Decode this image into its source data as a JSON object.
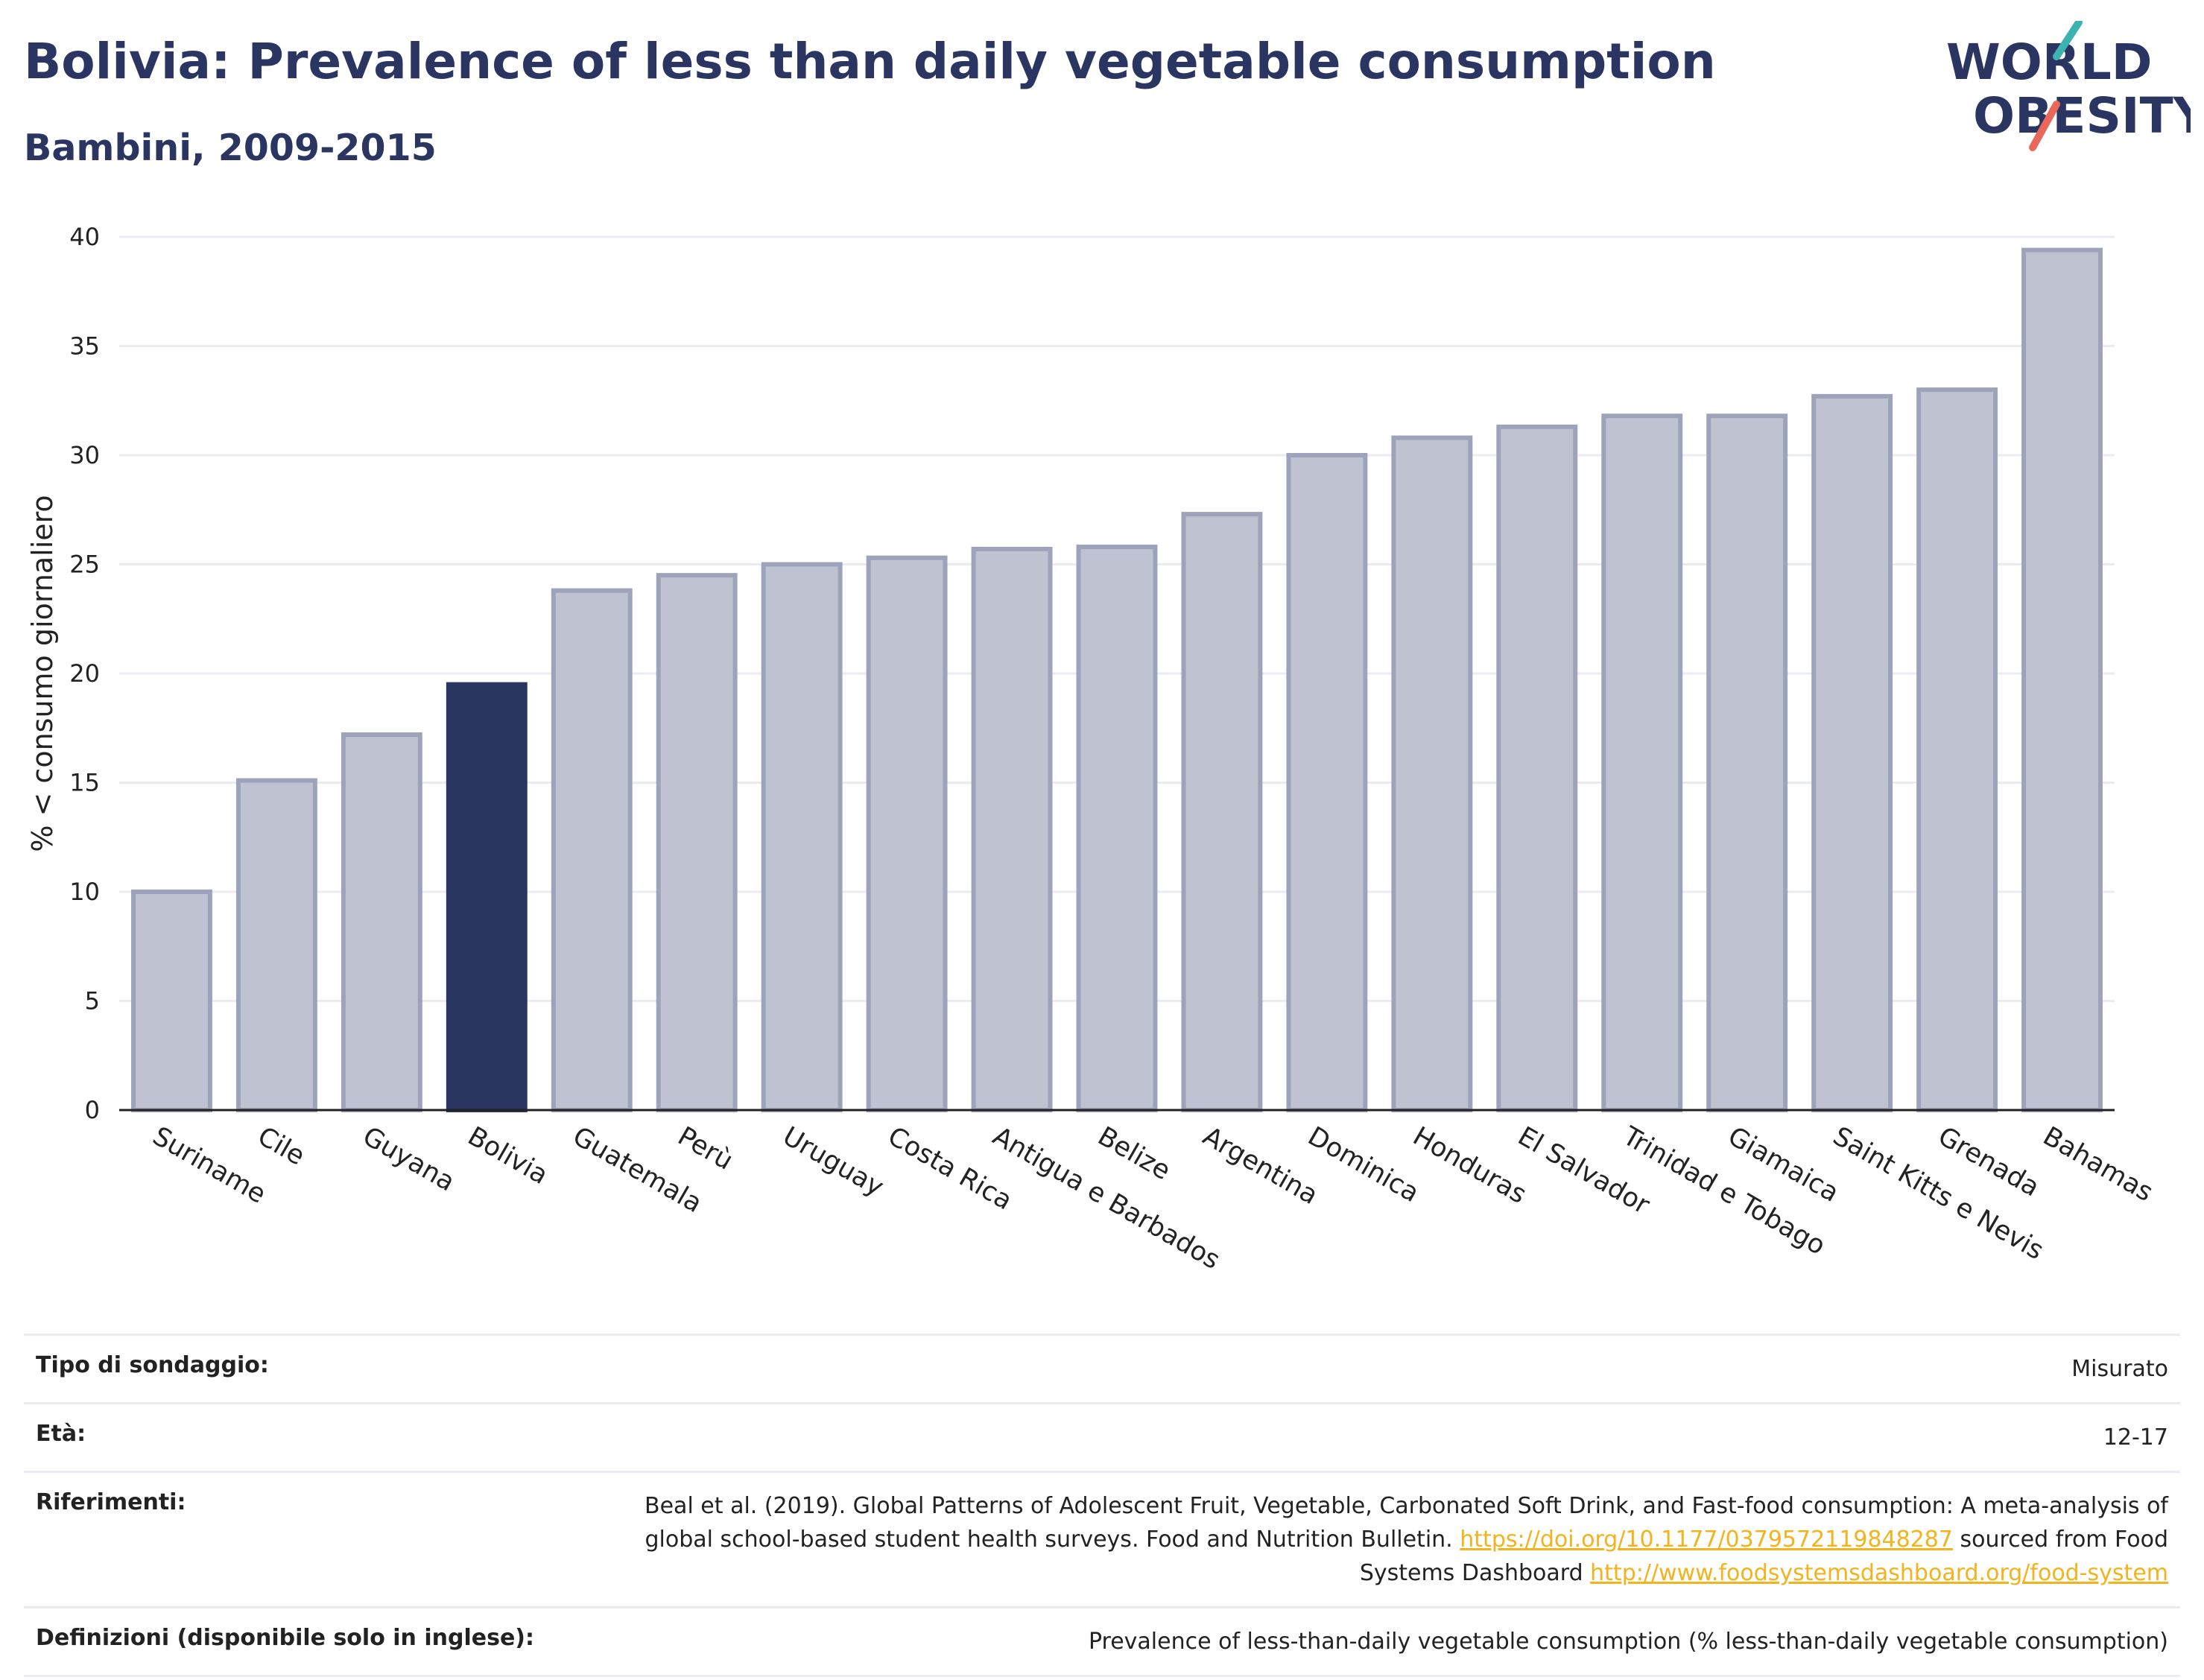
{
  "header": {
    "title": "Bolivia: Prevalence of less than daily vegetable consumption",
    "subtitle": "Bambini, 2009-2015"
  },
  "logo": {
    "line1": "WORLD",
    "line2": "OBESITY"
  },
  "colors": {
    "highlight": "#2b3561",
    "bar_fill": "#bfc2d0",
    "bar_stroke": "#9da3ba",
    "link": "#f2b31c",
    "grid": "#e9ecf3"
  },
  "chart_data": {
    "type": "bar",
    "ylabel": "% < consumo giornaliero",
    "xlabel": "",
    "ylim": [
      0,
      40
    ],
    "yticks": [
      0,
      5,
      10,
      15,
      20,
      25,
      30,
      35,
      40
    ],
    "grid": true,
    "highlight": "Bolivia",
    "categories": [
      "Suriname",
      "Cile",
      "Guyana",
      "Bolivia",
      "Guatemala",
      "Perù",
      "Uruguay",
      "Costa Rica",
      "Antigua e Barbados",
      "Belize",
      "Argentina",
      "Dominica",
      "Honduras",
      "El Salvador",
      "Trinidad e Tobago",
      "Giamaica",
      "Saint Kitts e Nevis",
      "Grenada",
      "Bahamas"
    ],
    "values": [
      10.0,
      15.1,
      17.2,
      19.5,
      23.8,
      24.5,
      25.0,
      25.3,
      25.7,
      25.8,
      27.3,
      30.0,
      30.8,
      31.3,
      31.8,
      31.8,
      32.7,
      33.0,
      39.4
    ]
  },
  "info": {
    "survey_label": "Tipo di sondaggio:",
    "survey_value": "Misurato",
    "age_label": "Età:",
    "age_value": "12-17",
    "refs_label": "Riferimenti:",
    "refs_text1": "Beal et al. (2019). Global Patterns of Adolescent Fruit, Vegetable, Carbonated Soft Drink, and Fast-food consumption: A meta-analysis of global school-based student health surveys. Food and Nutrition Bulletin.",
    "refs_link1": "https://doi.org/10.1177/0379572119848287",
    "refs_text2": "sourced from Food Systems Dashboard",
    "refs_link2": "http://www.foodsystemsdashboard.org/food-system",
    "def_label": "Definizioni (disponibile solo in inglese):",
    "def_value": "Prevalence of less-than-daily vegetable consumption (% less-than-daily vegetable consumption)"
  }
}
